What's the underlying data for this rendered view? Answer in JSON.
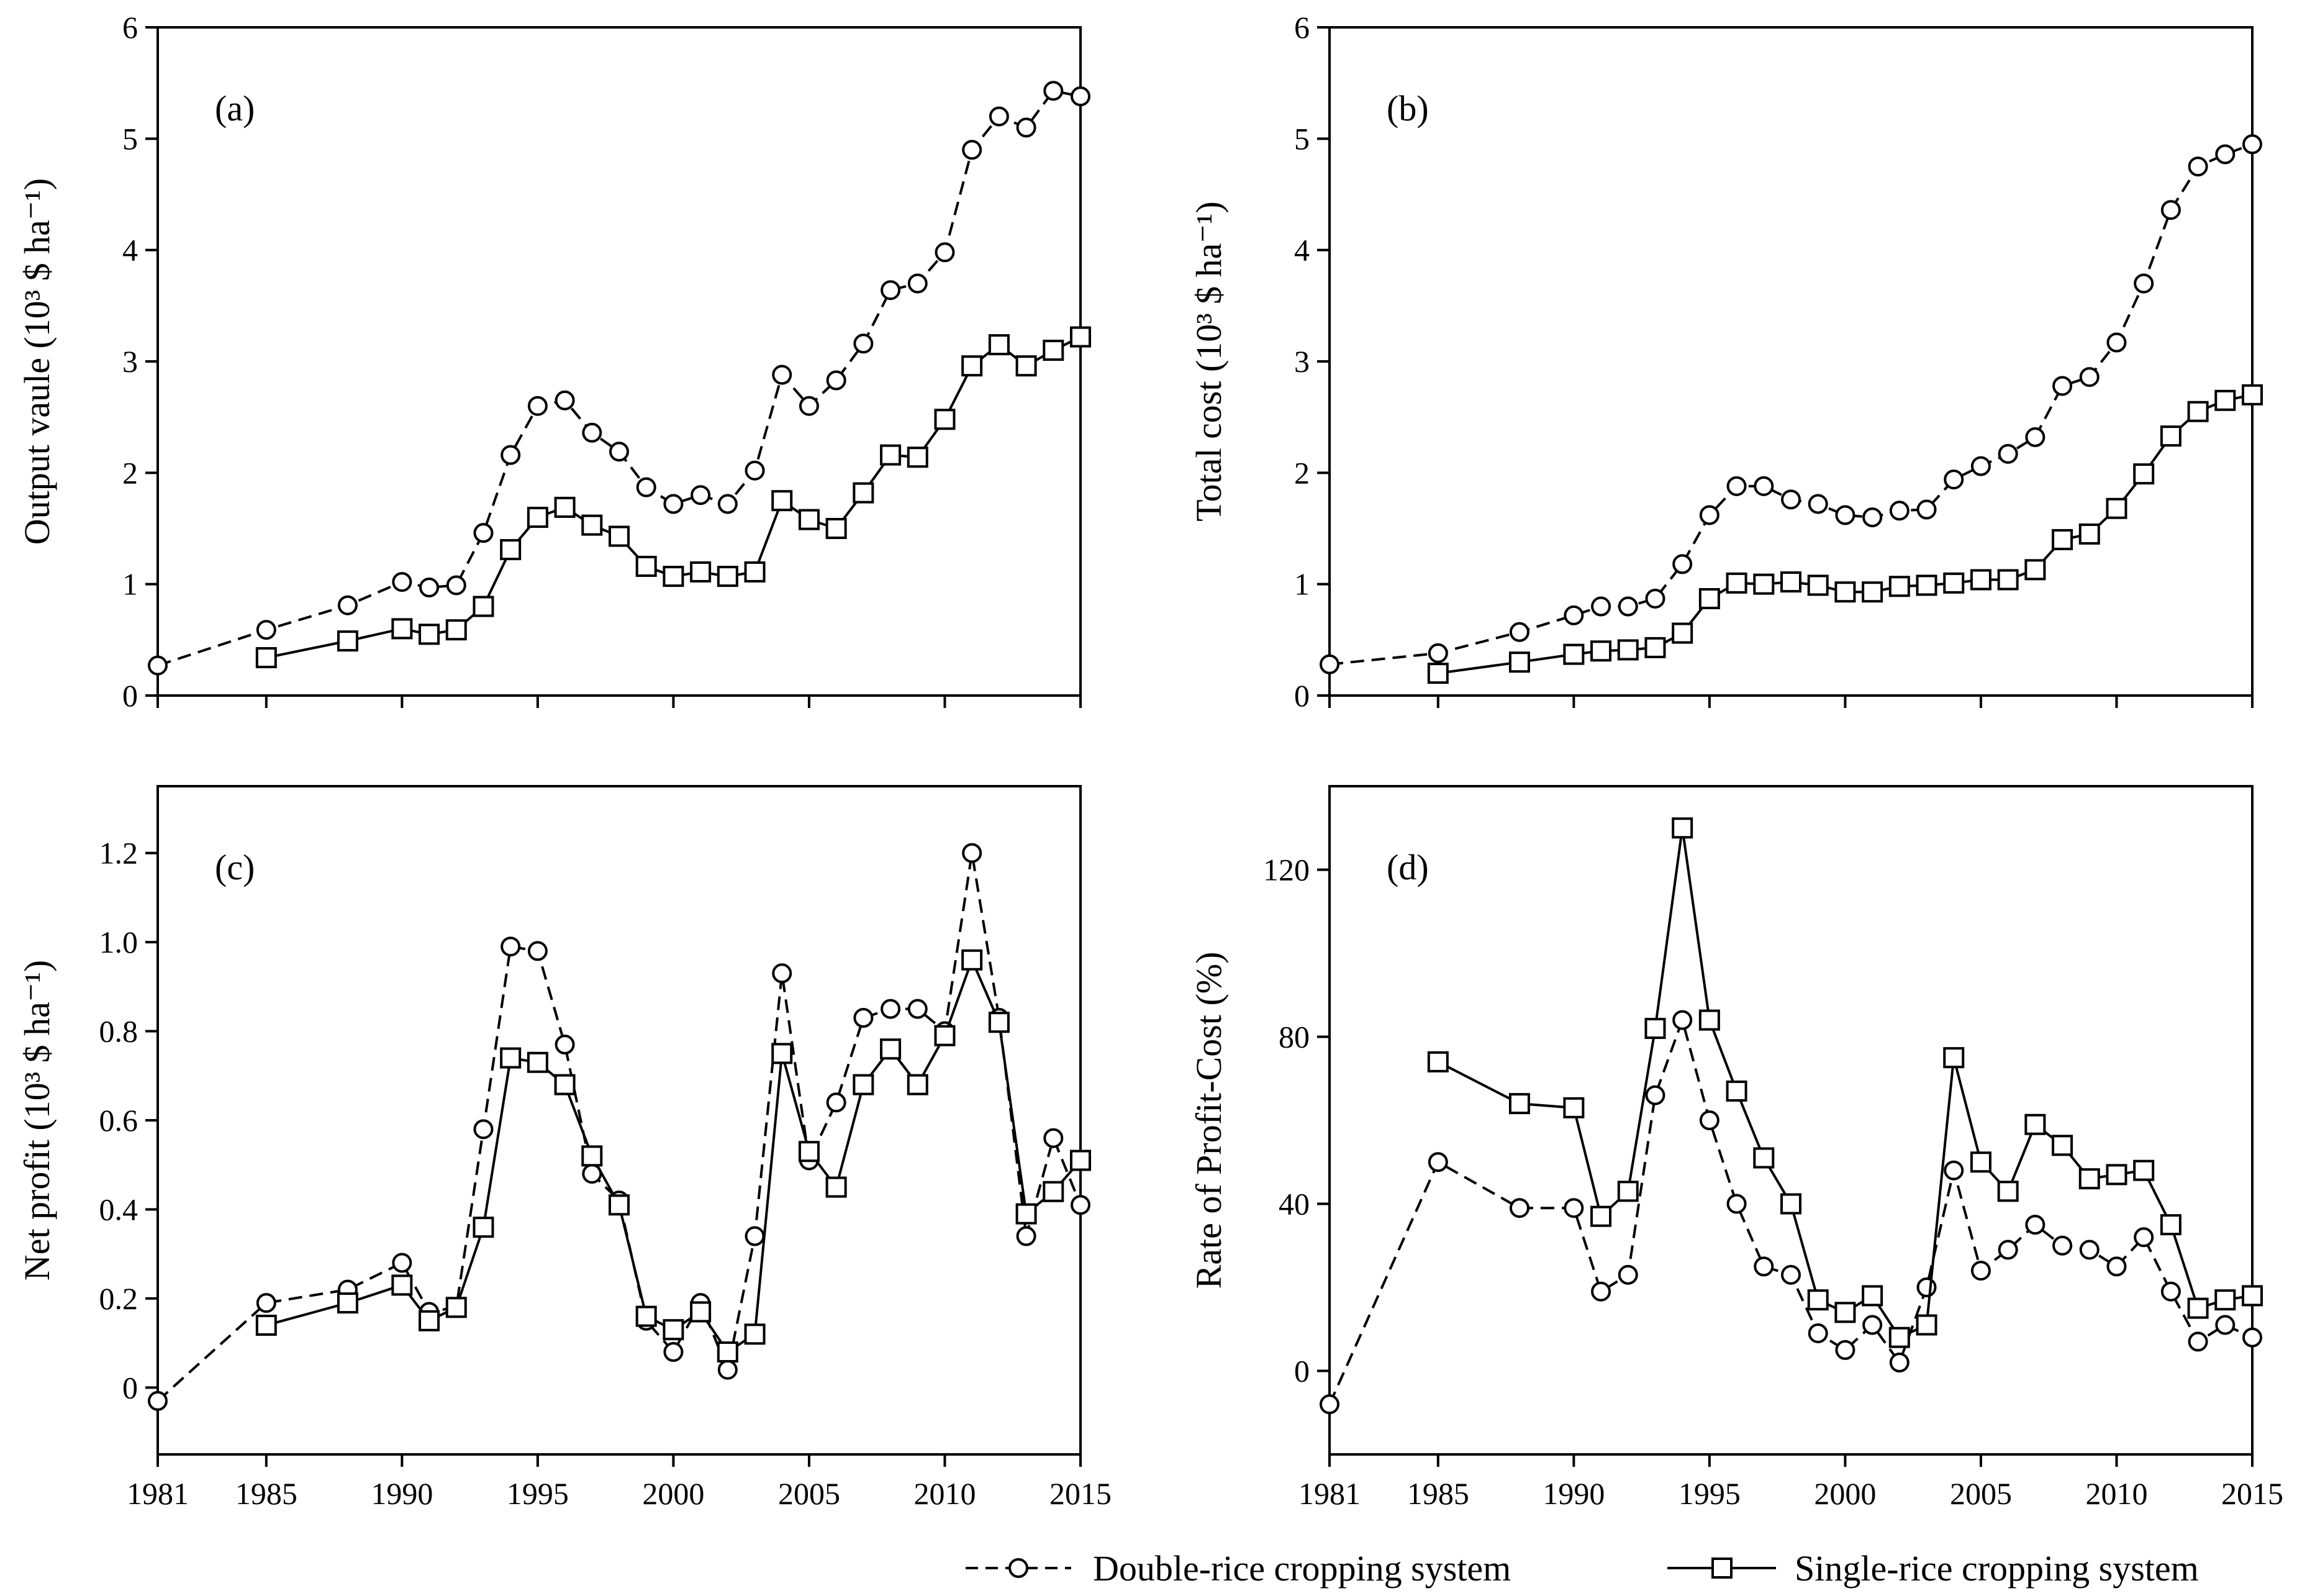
{
  "chart_data": [
    {
      "id": "a",
      "type": "line",
      "panel_label": "(a)",
      "ylabel": "Output vaule (10³ $ ha⁻¹)",
      "ylim": [
        0,
        6
      ],
      "yticks": [
        0,
        1,
        2,
        3,
        4,
        5,
        6
      ],
      "ytick_labels": [
        "0",
        "1",
        "2",
        "3",
        "4",
        "5",
        "6"
      ],
      "xlim": [
        1981,
        2015
      ],
      "xticks": [
        1981,
        1985,
        1990,
        1995,
        2000,
        2005,
        2010,
        2015
      ],
      "xtick_labels": [],
      "series": [
        {
          "name": "Double-rice cropping system",
          "style": "dashed",
          "marker": "circle",
          "x": [
            1981,
            1985,
            1988,
            1990,
            1991,
            1992,
            1993,
            1994,
            1995,
            1996,
            1997,
            1998,
            1999,
            2000,
            2001,
            2002,
            2003,
            2004,
            2005,
            2006,
            2007,
            2008,
            2009,
            2010,
            2011,
            2012,
            2013,
            2014,
            2015
          ],
          "y": [
            0.27,
            0.59,
            0.81,
            1.02,
            0.97,
            0.99,
            1.46,
            2.16,
            2.6,
            2.65,
            2.36,
            2.19,
            1.87,
            1.72,
            1.8,
            1.72,
            2.02,
            2.88,
            2.6,
            2.83,
            3.16,
            3.64,
            3.7,
            3.98,
            4.9,
            5.2,
            5.1,
            5.43,
            5.38
          ]
        },
        {
          "name": "Single-rice cropping system",
          "style": "solid",
          "marker": "square",
          "x": [
            1985,
            1988,
            1990,
            1991,
            1992,
            1993,
            1994,
            1995,
            1996,
            1997,
            1998,
            1999,
            2000,
            2001,
            2002,
            2003,
            2004,
            2005,
            2006,
            2007,
            2008,
            2009,
            2010,
            2011,
            2012,
            2013,
            2014,
            2015
          ],
          "y": [
            0.34,
            0.49,
            0.6,
            0.55,
            0.59,
            0.8,
            1.31,
            1.6,
            1.69,
            1.53,
            1.43,
            1.16,
            1.07,
            1.11,
            1.07,
            1.11,
            1.75,
            1.58,
            1.5,
            1.82,
            2.16,
            2.14,
            2.48,
            2.96,
            3.15,
            2.96,
            3.1,
            3.22
          ]
        }
      ]
    },
    {
      "id": "b",
      "type": "line",
      "panel_label": "(b)",
      "ylabel": "Total cost (10³  $ ha⁻¹)",
      "ylim": [
        0,
        6
      ],
      "yticks": [
        0,
        1,
        2,
        3,
        4,
        5,
        6
      ],
      "ytick_labels": [
        "0",
        "1",
        "2",
        "3",
        "4",
        "5",
        "6"
      ],
      "xlim": [
        1981,
        2015
      ],
      "xticks": [
        1981,
        1985,
        1990,
        1995,
        2000,
        2005,
        2010,
        2015
      ],
      "xtick_labels": [],
      "series": [
        {
          "name": "Double-rice cropping system",
          "style": "dashed",
          "marker": "circle",
          "x": [
            1981,
            1985,
            1988,
            1990,
            1991,
            1992,
            1993,
            1994,
            1995,
            1996,
            1997,
            1998,
            1999,
            2000,
            2001,
            2002,
            2003,
            2004,
            2005,
            2006,
            2007,
            2008,
            2009,
            2010,
            2011,
            2012,
            2013,
            2014,
            2015
          ],
          "y": [
            0.28,
            0.38,
            0.57,
            0.72,
            0.8,
            0.8,
            0.87,
            1.18,
            1.62,
            1.88,
            1.88,
            1.76,
            1.72,
            1.62,
            1.6,
            1.66,
            1.67,
            1.94,
            2.06,
            2.17,
            2.32,
            2.78,
            2.86,
            3.17,
            3.7,
            4.36,
            4.75,
            4.86,
            4.95
          ]
        },
        {
          "name": "Single-rice cropping system",
          "style": "solid",
          "marker": "square",
          "x": [
            1985,
            1988,
            1990,
            1991,
            1992,
            1993,
            1994,
            1995,
            1996,
            1997,
            1998,
            1999,
            2000,
            2001,
            2002,
            2003,
            2004,
            2005,
            2006,
            2007,
            2008,
            2009,
            2010,
            2011,
            2012,
            2013,
            2014,
            2015
          ],
          "y": [
            0.2,
            0.3,
            0.37,
            0.4,
            0.41,
            0.43,
            0.56,
            0.87,
            1.01,
            1.0,
            1.02,
            0.99,
            0.93,
            0.93,
            0.98,
            0.99,
            1.01,
            1.04,
            1.04,
            1.13,
            1.4,
            1.45,
            1.68,
            1.99,
            2.33,
            2.55,
            2.65,
            2.7
          ]
        }
      ]
    },
    {
      "id": "c",
      "type": "line",
      "panel_label": "(c)",
      "ylabel": "Net profit (10³ $ ha⁻¹)",
      "ylim": [
        -0.15,
        1.35
      ],
      "yticks": [
        0,
        0.2,
        0.4,
        0.6,
        0.8,
        1.0,
        1.2
      ],
      "ytick_labels": [
        "0",
        "0.2",
        "0.4",
        "0.6",
        "0.8",
        "1.0",
        "1.2"
      ],
      "xlim": [
        1981,
        2015
      ],
      "xticks": [
        1981,
        1985,
        1990,
        1995,
        2000,
        2005,
        2010,
        2015
      ],
      "xtick_labels": [
        "1981",
        "1985",
        "1990",
        "1995",
        "2000",
        "2005",
        "2010",
        "2015"
      ],
      "series": [
        {
          "name": "Double-rice cropping system",
          "style": "dashed",
          "marker": "circle",
          "x": [
            1981,
            1985,
            1988,
            1990,
            1991,
            1992,
            1993,
            1994,
            1995,
            1996,
            1997,
            1998,
            1999,
            2000,
            2001,
            2002,
            2003,
            2004,
            2005,
            2006,
            2007,
            2008,
            2009,
            2010,
            2011,
            2012,
            2013,
            2014,
            2015
          ],
          "y": [
            -0.03,
            0.19,
            0.22,
            0.28,
            0.17,
            0.18,
            0.58,
            0.99,
            0.98,
            0.77,
            0.48,
            0.42,
            0.15,
            0.08,
            0.19,
            0.04,
            0.34,
            0.93,
            0.51,
            0.64,
            0.83,
            0.85,
            0.85,
            0.8,
            1.2,
            0.83,
            0.34,
            0.56,
            0.41
          ]
        },
        {
          "name": "Single-rice cropping system",
          "style": "solid",
          "marker": "square",
          "x": [
            1985,
            1988,
            1990,
            1991,
            1992,
            1993,
            1994,
            1995,
            1996,
            1997,
            1998,
            1999,
            2000,
            2001,
            2002,
            2003,
            2004,
            2005,
            2006,
            2007,
            2008,
            2009,
            2010,
            2011,
            2012,
            2013,
            2014,
            2015
          ],
          "y": [
            0.14,
            0.19,
            0.23,
            0.15,
            0.18,
            0.36,
            0.74,
            0.73,
            0.68,
            0.52,
            0.41,
            0.16,
            0.13,
            0.17,
            0.08,
            0.12,
            0.75,
            0.53,
            0.45,
            0.68,
            0.76,
            0.68,
            0.79,
            0.96,
            0.82,
            0.39,
            0.44,
            0.51
          ]
        }
      ]
    },
    {
      "id": "d",
      "type": "line",
      "panel_label": "(d)",
      "ylabel": "Rate of Profit-Cost (%)",
      "ylim": [
        -20,
        140
      ],
      "yticks": [
        0,
        40,
        80,
        120
      ],
      "ytick_labels": [
        "0",
        "40",
        "80",
        "120"
      ],
      "xlim": [
        1981,
        2015
      ],
      "xticks": [
        1981,
        1985,
        1990,
        1995,
        2000,
        2005,
        2010,
        2015
      ],
      "xtick_labels": [
        "1981",
        "1985",
        "1990",
        "1995",
        "2000",
        "2005",
        "2010",
        "2015"
      ],
      "series": [
        {
          "name": "Double-rice cropping system",
          "style": "dashed",
          "marker": "circle",
          "x": [
            1981,
            1985,
            1988,
            1990,
            1991,
            1992,
            1993,
            1994,
            1995,
            1996,
            1997,
            1998,
            1999,
            2000,
            2001,
            2002,
            2003,
            2004,
            2005,
            2006,
            2007,
            2008,
            2009,
            2010,
            2011,
            2012,
            2013,
            2014,
            2015
          ],
          "y": [
            -8,
            50,
            39,
            39,
            19,
            23,
            66,
            84,
            60,
            40,
            25,
            23,
            9,
            5,
            11,
            2,
            20,
            48,
            24,
            29,
            35,
            30,
            29,
            25,
            32,
            19,
            7,
            11,
            8
          ]
        },
        {
          "name": "Single-rice cropping system",
          "style": "solid",
          "marker": "square",
          "x": [
            1985,
            1988,
            1990,
            1991,
            1992,
            1993,
            1994,
            1995,
            1996,
            1997,
            1998,
            1999,
            2000,
            2001,
            2002,
            2003,
            2004,
            2005,
            2006,
            2007,
            2008,
            2009,
            2010,
            2011,
            2012,
            2013,
            2014,
            2015
          ],
          "y": [
            74,
            64,
            63,
            37,
            43,
            82,
            130,
            84,
            67,
            51,
            40,
            17,
            14,
            18,
            8,
            11,
            75,
            50,
            43,
            59,
            54,
            46,
            47,
            48,
            35,
            15,
            17,
            18
          ]
        }
      ]
    }
  ],
  "legend": {
    "items": [
      {
        "label": "Double-rice cropping system",
        "style": "dashed",
        "marker": "circle"
      },
      {
        "label": "Single-rice cropping system",
        "style": "solid",
        "marker": "square"
      }
    ]
  }
}
